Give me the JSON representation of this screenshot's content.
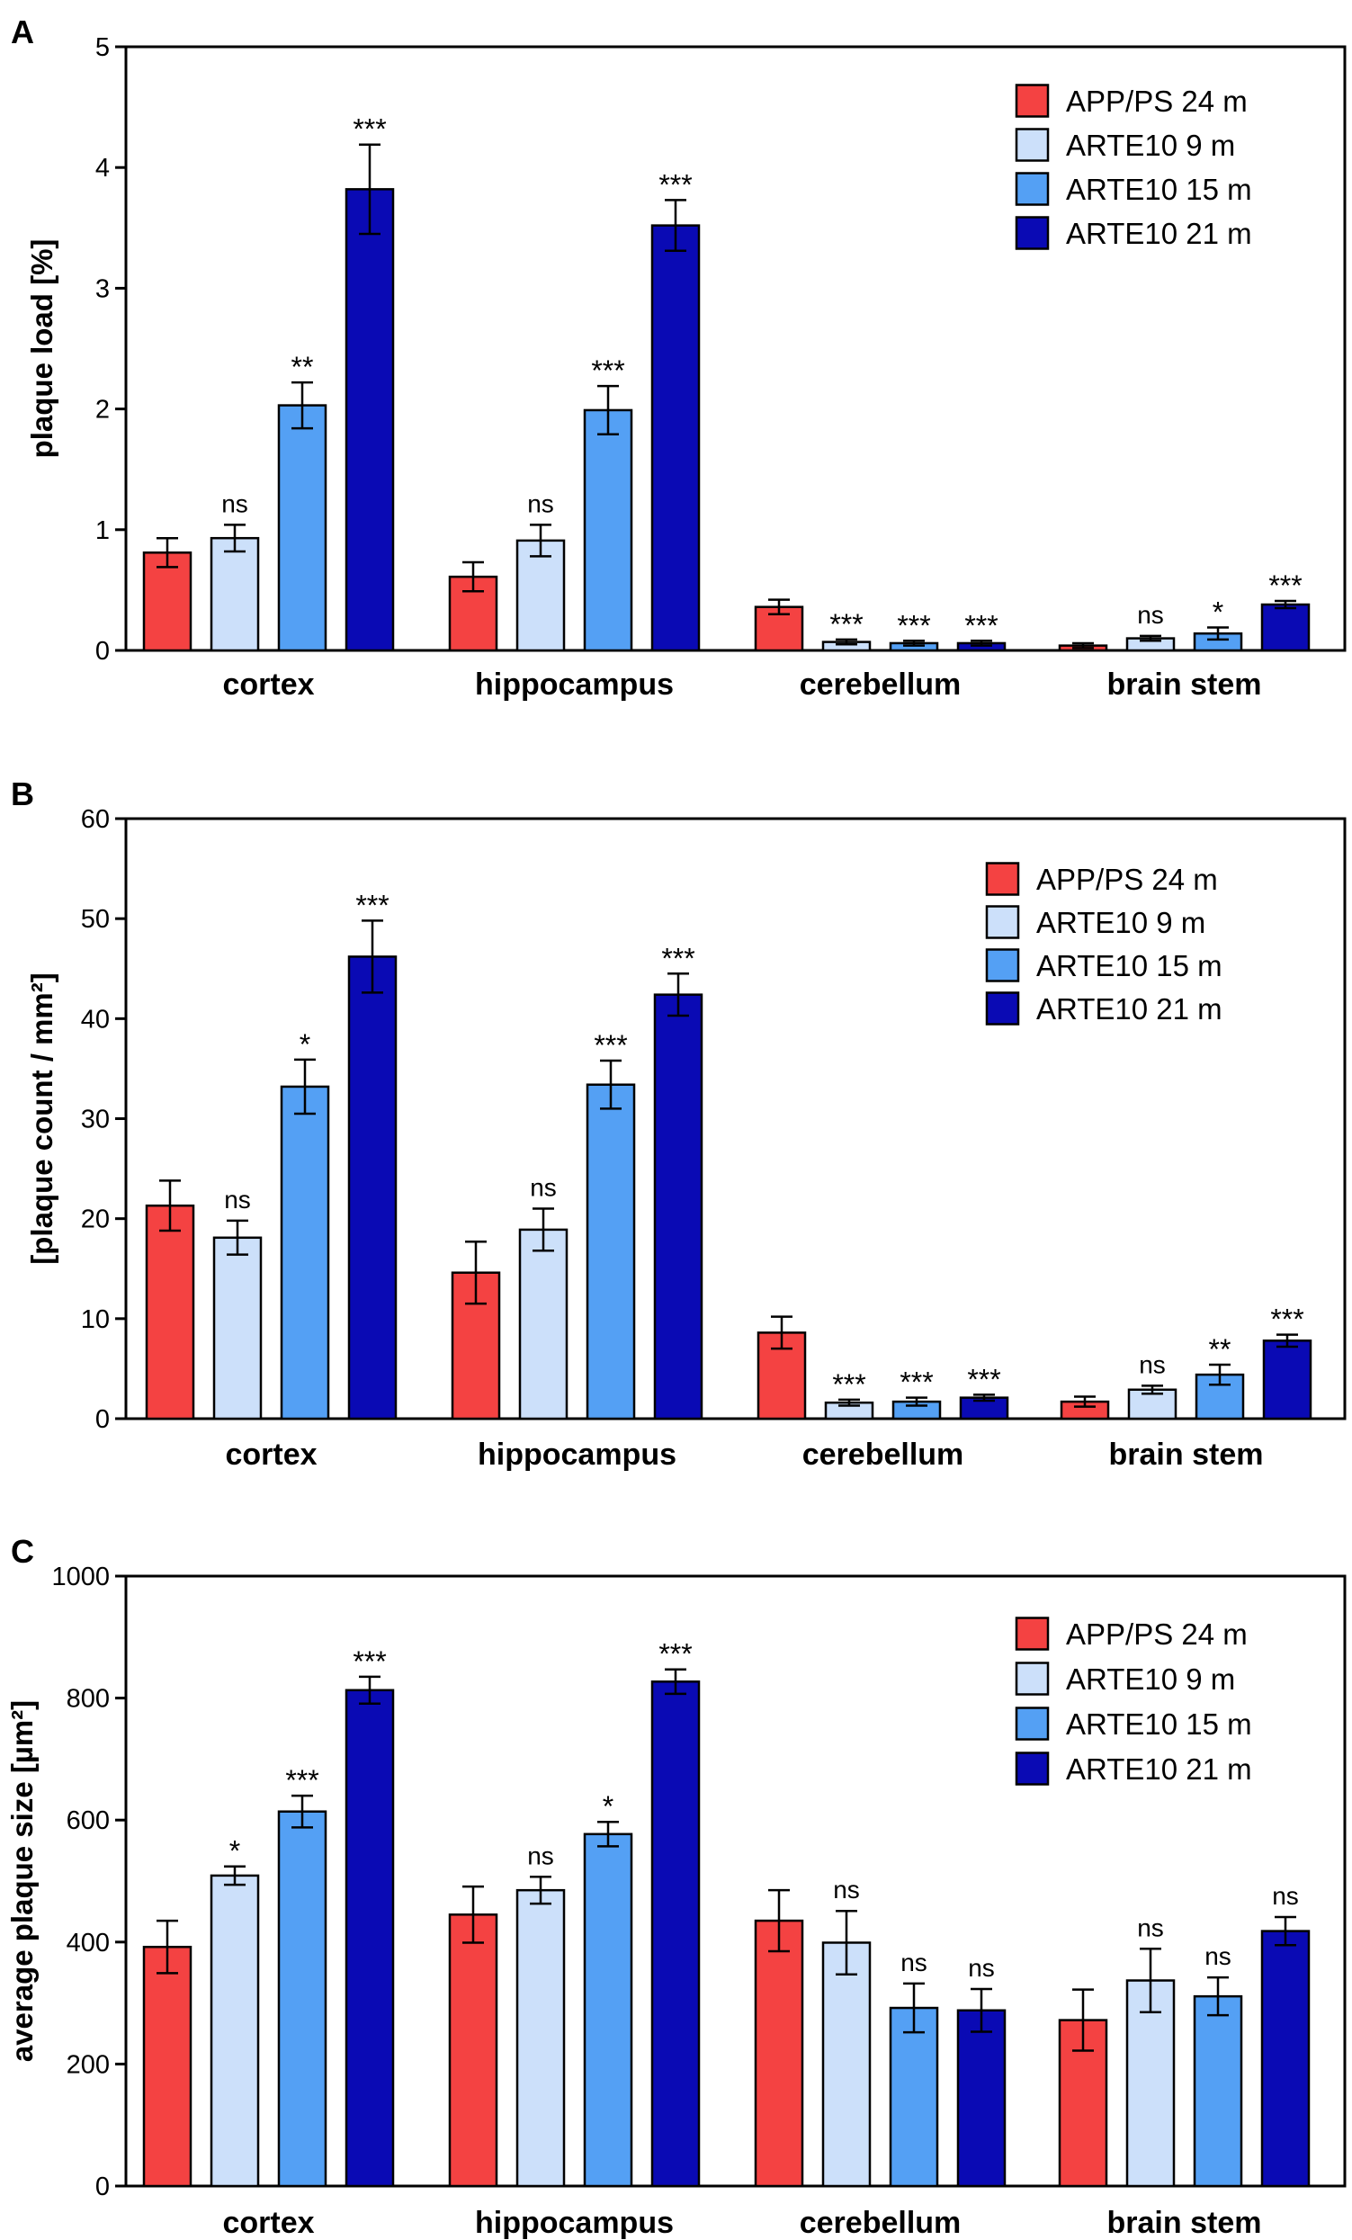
{
  "colors": {
    "APP/PS 24 m": "#f44242",
    "ARTE10 9 m": "#cce0fa",
    "ARTE10 15 m": "#54a0f4",
    "ARTE10 21 m": "#0a0ab4"
  },
  "chart_data": [
    {
      "type": "bar",
      "panel": "A",
      "ylabel": "plaque load [%]",
      "ylim": [
        0,
        5
      ],
      "yticks": [
        0,
        1,
        2,
        3,
        4,
        5
      ],
      "categories": [
        "cortex",
        "hippocampus",
        "cerebellum",
        "brain stem"
      ],
      "legend": [
        "APP/PS 24 m",
        "ARTE10 9 m",
        "ARTE10 15 m",
        "ARTE10 21 m"
      ],
      "series": [
        {
          "name": "APP/PS 24 m",
          "values": [
            0.81,
            0.61,
            0.36,
            0.04
          ],
          "errors": [
            0.12,
            0.12,
            0.06,
            0.02
          ],
          "sig": [
            "",
            "",
            "",
            ""
          ]
        },
        {
          "name": "ARTE10 9 m",
          "values": [
            0.93,
            0.91,
            0.07,
            0.1
          ],
          "errors": [
            0.11,
            0.13,
            0.02,
            0.02
          ],
          "sig": [
            "ns",
            "ns",
            "***",
            "ns"
          ]
        },
        {
          "name": "ARTE10 15 m",
          "values": [
            2.03,
            1.99,
            0.06,
            0.14
          ],
          "errors": [
            0.19,
            0.2,
            0.02,
            0.05
          ],
          "sig": [
            "**",
            "***",
            "***",
            "*"
          ]
        },
        {
          "name": "ARTE10 21 m",
          "values": [
            3.82,
            3.52,
            0.06,
            0.38
          ],
          "errors": [
            0.37,
            0.21,
            0.02,
            0.03
          ],
          "sig": [
            "***",
            "***",
            "***",
            "***"
          ]
        }
      ]
    },
    {
      "type": "bar",
      "panel": "B",
      "ylabel": "[plaque count / mm²]",
      "ylim": [
        0,
        60
      ],
      "yticks": [
        0,
        10,
        20,
        30,
        40,
        50,
        60
      ],
      "categories": [
        "cortex",
        "hippocampus",
        "cerebellum",
        "brain stem"
      ],
      "legend": [
        "APP/PS 24 m",
        "ARTE10 9 m",
        "ARTE10 15 m",
        "ARTE10 21 m"
      ],
      "series": [
        {
          "name": "APP/PS 24 m",
          "values": [
            21.3,
            14.6,
            8.6,
            1.7
          ],
          "errors": [
            2.5,
            3.1,
            1.6,
            0.5
          ],
          "sig": [
            "",
            "",
            "",
            ""
          ]
        },
        {
          "name": "ARTE10 9 m",
          "values": [
            18.1,
            18.9,
            1.6,
            2.9
          ],
          "errors": [
            1.7,
            2.1,
            0.3,
            0.4
          ],
          "sig": [
            "ns",
            "ns",
            "***",
            "ns"
          ]
        },
        {
          "name": "ARTE10 15 m",
          "values": [
            33.2,
            33.4,
            1.7,
            4.4
          ],
          "errors": [
            2.7,
            2.4,
            0.4,
            1.0
          ],
          "sig": [
            "*",
            "***",
            "***",
            "**"
          ]
        },
        {
          "name": "ARTE10 21 m",
          "values": [
            46.2,
            42.4,
            2.1,
            7.8
          ],
          "errors": [
            3.6,
            2.1,
            0.3,
            0.6
          ],
          "sig": [
            "***",
            "***",
            "***",
            "***"
          ]
        }
      ]
    },
    {
      "type": "bar",
      "panel": "C",
      "ylabel": "average plaque size [µm²]",
      "ylim": [
        0,
        1000
      ],
      "yticks": [
        0,
        200,
        400,
        600,
        800,
        1000
      ],
      "categories": [
        "cortex",
        "hippocampus",
        "cerebellum",
        "brain stem"
      ],
      "legend": [
        "APP/PS 24 m",
        "ARTE10 9 m",
        "ARTE10 15 m",
        "ARTE10 21 m"
      ],
      "series": [
        {
          "name": "APP/PS 24 m",
          "values": [
            392,
            445,
            435,
            272
          ],
          "errors": [
            43,
            46,
            50,
            50
          ],
          "sig": [
            "",
            "",
            "",
            ""
          ]
        },
        {
          "name": "ARTE10 9 m",
          "values": [
            509,
            485,
            399,
            337
          ],
          "errors": [
            15,
            22,
            52,
            52
          ],
          "sig": [
            "*",
            "ns",
            "ns",
            "ns"
          ]
        },
        {
          "name": "ARTE10 15 m",
          "values": [
            614,
            577,
            292,
            311
          ],
          "errors": [
            26,
            20,
            40,
            31
          ],
          "sig": [
            "***",
            "*",
            "ns",
            "ns"
          ]
        },
        {
          "name": "ARTE10 21 m",
          "values": [
            813,
            827,
            288,
            418
          ],
          "errors": [
            22,
            20,
            35,
            23
          ],
          "sig": [
            "***",
            "***",
            "ns",
            "ns"
          ]
        }
      ]
    }
  ]
}
